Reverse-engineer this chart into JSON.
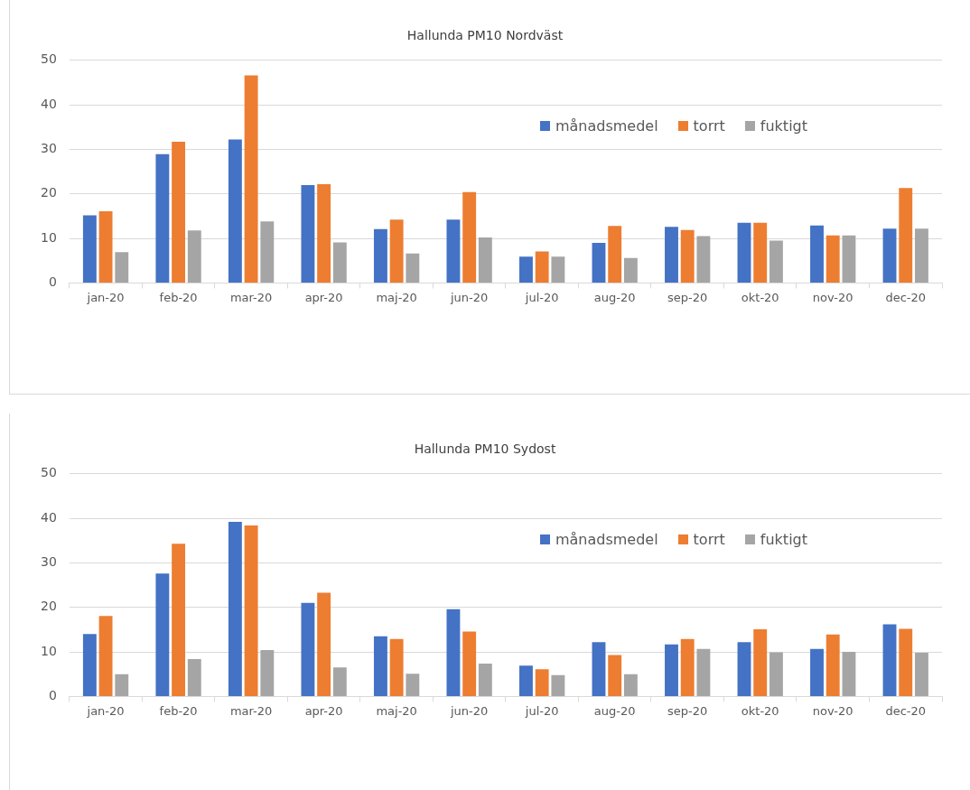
{
  "chart_data": [
    {
      "type": "bar",
      "title": "Hallunda PM10 Nordväst",
      "categories": [
        "jan-20",
        "feb-20",
        "mar-20",
        "apr-20",
        "maj-20",
        "jun-20",
        "jul-20",
        "aug-20",
        "sep-20",
        "okt-20",
        "nov-20",
        "dec-20"
      ],
      "series": [
        {
          "name": "månadsmedel",
          "color": "#4472c4",
          "values": [
            15.2,
            28.9,
            32.2,
            22.0,
            12.1,
            14.2,
            5.9,
            9.0,
            12.6,
            13.5,
            12.9,
            12.2
          ]
        },
        {
          "name": "torrt",
          "color": "#ed7d31",
          "values": [
            16.1,
            31.7,
            46.6,
            22.2,
            14.2,
            20.4,
            7.1,
            12.8,
            11.9,
            13.5,
            10.7,
            21.3
          ]
        },
        {
          "name": "fuktigt",
          "color": "#a5a5a5",
          "values": [
            6.9,
            11.8,
            13.8,
            9.1,
            6.6,
            10.2,
            5.9,
            5.6,
            10.5,
            9.5,
            10.7,
            12.2
          ]
        }
      ],
      "ylim": [
        0,
        50
      ],
      "yticks": [
        0,
        10,
        20,
        30,
        40,
        50
      ],
      "grid": "y",
      "legend": "top right"
    },
    {
      "type": "bar",
      "title": "Hallunda PM10 Sydost",
      "categories": [
        "jan-20",
        "feb-20",
        "mar-20",
        "apr-20",
        "maj-20",
        "jun-20",
        "jul-20",
        "aug-20",
        "sep-20",
        "okt-20",
        "nov-20",
        "dec-20"
      ],
      "series": [
        {
          "name": "månadsmedel",
          "color": "#4472c4",
          "values": [
            14.0,
            27.6,
            39.2,
            21.0,
            13.5,
            19.6,
            6.9,
            12.2,
            11.7,
            12.2,
            10.7,
            16.2
          ]
        },
        {
          "name": "torrt",
          "color": "#ed7d31",
          "values": [
            18.1,
            34.3,
            38.4,
            23.3,
            12.9,
            14.6,
            6.1,
            9.3,
            12.9,
            15.1,
            13.9,
            15.2
          ]
        },
        {
          "name": "fuktigt",
          "color": "#a5a5a5",
          "values": [
            5.0,
            8.4,
            10.4,
            6.5,
            5.1,
            7.4,
            4.8,
            5.0,
            10.7,
            9.9,
            10.0,
            9.8
          ]
        }
      ],
      "ylim": [
        0,
        50
      ],
      "yticks": [
        0,
        10,
        20,
        30,
        40,
        50
      ],
      "grid": "y",
      "legend": "top right"
    }
  ]
}
